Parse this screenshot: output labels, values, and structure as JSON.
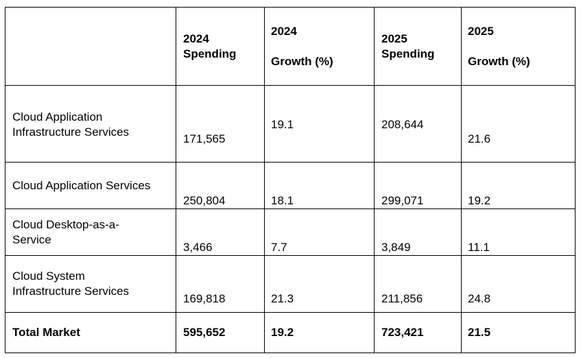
{
  "table": {
    "header": {
      "c1_line1": "2024",
      "c1_line2": "Spending",
      "c2_line1": "2024",
      "c2_line2": "Growth (%)",
      "c3_line1": "2025",
      "c3_line2": "Spending",
      "c4_line1": "2025",
      "c4_line2": "Growth (%)"
    },
    "rows": [
      {
        "label_line1": "Cloud Application",
        "label_line2": "Infrastructure Services",
        "spending_2024": "171,565",
        "growth_2024": "19.1",
        "spending_2025": "208,644",
        "growth_2025": "21.6"
      },
      {
        "label_line1": "Cloud Application Services",
        "spending_2024": "250,804",
        "growth_2024": "18.1",
        "spending_2025": "299,071",
        "growth_2025": "19.2"
      },
      {
        "label_line1": "Cloud Desktop-as-a-",
        "label_line2": "Service",
        "spending_2024": "3,466",
        "growth_2024": "7.7",
        "spending_2025": "3,849",
        "growth_2025": "11.1"
      },
      {
        "label_line1": "Cloud System",
        "label_line2": "Infrastructure Services",
        "spending_2024": "169,818",
        "growth_2024": "21.3",
        "spending_2025": "211,856",
        "growth_2025": "24.8"
      }
    ],
    "total": {
      "label": "Total Market",
      "spending_2024": "595,652",
      "growth_2024": "19.2",
      "spending_2025": "723,421",
      "growth_2025": "21.5"
    }
  }
}
